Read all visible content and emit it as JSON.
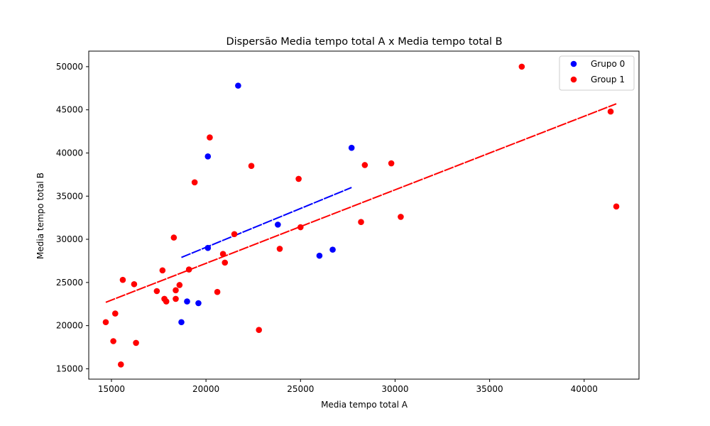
{
  "chart_data": {
    "type": "scatter",
    "title": "Dispersão Media tempo total A x Media tempo total B",
    "xlabel": "Media tempo total A",
    "ylabel": "Media tempo total B",
    "xlim": [
      13800,
      42900
    ],
    "ylim": [
      13800,
      51800
    ],
    "xticks": [
      15000,
      20000,
      25000,
      30000,
      35000,
      40000
    ],
    "yticks": [
      15000,
      20000,
      25000,
      30000,
      35000,
      40000,
      45000,
      50000
    ],
    "xtick_labels": [
      "15000",
      "20000",
      "25000",
      "30000",
      "35000",
      "40000"
    ],
    "ytick_labels": [
      "15000",
      "20000",
      "25000",
      "30000",
      "35000",
      "40000",
      "45000",
      "50000"
    ],
    "grid": false,
    "legend_position": "top-right",
    "series": [
      {
        "name": "Grupo 0",
        "color": "#0000ff",
        "points": [
          [
            21700,
            47800
          ],
          [
            20100,
            39600
          ],
          [
            27700,
            40600
          ],
          [
            23800,
            31700
          ],
          [
            20100,
            29000
          ],
          [
            26000,
            28100
          ],
          [
            26700,
            28800
          ],
          [
            19000,
            22800
          ],
          [
            19600,
            22600
          ],
          [
            18700,
            20400
          ]
        ],
        "trend": {
          "x": [
            18700,
            27700
          ],
          "y": [
            27900,
            36000
          ]
        }
      },
      {
        "name": "Group 1",
        "color": "#ff0000",
        "points": [
          [
            36700,
            50000
          ],
          [
            41400,
            44800
          ],
          [
            41700,
            33800
          ],
          [
            20200,
            41800
          ],
          [
            22400,
            38500
          ],
          [
            19400,
            36600
          ],
          [
            24900,
            37000
          ],
          [
            28400,
            38600
          ],
          [
            29800,
            38800
          ],
          [
            30300,
            32600
          ],
          [
            28200,
            32000
          ],
          [
            25000,
            31400
          ],
          [
            21500,
            30600
          ],
          [
            18300,
            30200
          ],
          [
            23900,
            28900
          ],
          [
            20900,
            28300
          ],
          [
            21000,
            27300
          ],
          [
            19100,
            26500
          ],
          [
            17700,
            26400
          ],
          [
            15600,
            25300
          ],
          [
            16200,
            24800
          ],
          [
            18600,
            24700
          ],
          [
            17400,
            24000
          ],
          [
            18400,
            24100
          ],
          [
            20600,
            23900
          ],
          [
            17800,
            23100
          ],
          [
            18400,
            23100
          ],
          [
            17900,
            22800
          ],
          [
            15200,
            21400
          ],
          [
            14700,
            20400
          ],
          [
            22800,
            19500
          ],
          [
            15100,
            18200
          ],
          [
            16300,
            18000
          ],
          [
            15500,
            15500
          ]
        ],
        "trend": {
          "x": [
            14700,
            41700
          ],
          "y": [
            22700,
            45700
          ]
        }
      }
    ]
  }
}
